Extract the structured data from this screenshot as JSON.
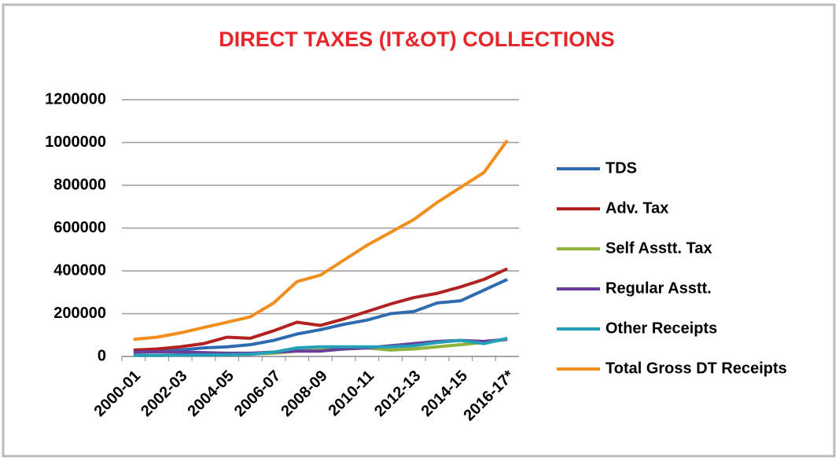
{
  "chart_data": {
    "type": "line",
    "title": "DIRECT TAXES (IT&OT) COLLECTIONS",
    "categories": [
      "2000-01",
      null,
      "2002-03",
      null,
      "2004-05",
      null,
      "2006-07",
      null,
      "2008-09",
      null,
      "2010-11",
      null,
      "2012-13",
      null,
      "2014-15",
      null,
      "2016-17*"
    ],
    "series": [
      {
        "name": "TDS",
        "color": "#2e6bb0",
        "values": [
          25000,
          25000,
          30000,
          40000,
          45000,
          55000,
          75000,
          105000,
          125000,
          150000,
          170000,
          200000,
          210000,
          250000,
          260000,
          310000,
          360000
        ]
      },
      {
        "name": "Adv. Tax",
        "color": "#b22222",
        "values": [
          30000,
          35000,
          45000,
          60000,
          90000,
          85000,
          120000,
          160000,
          145000,
          175000,
          210000,
          245000,
          275000,
          295000,
          325000,
          360000,
          410000
        ]
      },
      {
        "name": "Self Asstt. Tax",
        "color": "#8db33a",
        "values": [
          5000,
          5000,
          6000,
          8000,
          10000,
          12000,
          15000,
          25000,
          30000,
          35000,
          40000,
          30000,
          35000,
          45000,
          55000,
          65000,
          80000
        ]
      },
      {
        "name": "Regular Asstt.",
        "color": "#6a3d9a",
        "values": [
          20000,
          22000,
          20000,
          18000,
          15000,
          15000,
          20000,
          25000,
          25000,
          35000,
          40000,
          50000,
          60000,
          70000,
          75000,
          70000,
          80000
        ]
      },
      {
        "name": "Other Receipts",
        "color": "#23a0b8",
        "values": [
          5000,
          5000,
          6000,
          7000,
          8000,
          10000,
          20000,
          40000,
          45000,
          45000,
          45000,
          45000,
          50000,
          65000,
          75000,
          60000,
          85000
        ]
      },
      {
        "name": "Total Gross DT Receipts",
        "color": "#f28e1e",
        "values": [
          80000,
          90000,
          110000,
          135000,
          160000,
          185000,
          250000,
          350000,
          380000,
          450000,
          520000,
          580000,
          640000,
          720000,
          790000,
          860000,
          1010000
        ]
      }
    ],
    "ylim": [
      0,
      1200000
    ],
    "yticks": [
      0,
      200000,
      400000,
      600000,
      800000,
      1000000,
      1200000
    ],
    "grid": true,
    "legend": "right"
  }
}
